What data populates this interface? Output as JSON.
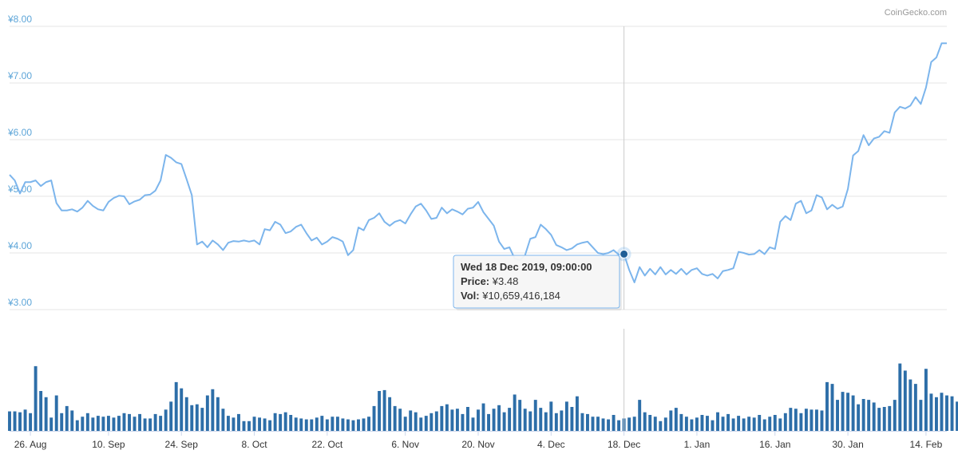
{
  "credit": "CoinGecko.com",
  "tooltip": {
    "date": "Wed 18 Dec 2019, 09:00:00",
    "price_label": "Price:",
    "price_value": "¥3.48",
    "vol_label": "Vol:",
    "vol_value": "¥10,659,416,184"
  },
  "colors": {
    "price_line": "#7cb5ec",
    "volume_bar": "#2d6ea8",
    "crosshair": "#cccccc",
    "grid": "#e6e6e6",
    "axis_label": "#5da5d8"
  },
  "chart_data": [
    {
      "type": "line",
      "title": "",
      "series": [
        {
          "name": "Price",
          "unit": "¥"
        }
      ],
      "y_tick_labels": [
        "¥3.00",
        "¥4.00",
        "¥5.00",
        "¥6.00",
        "¥7.00",
        "¥8.00"
      ],
      "ylim": [
        3,
        8
      ],
      "x_tick_labels": [
        "26. Aug",
        "10. Sep",
        "24. Sep",
        "8. Oct",
        "22. Oct",
        "6. Nov",
        "20. Nov",
        "4. Dec",
        "18. Dec",
        "1. Jan",
        "16. Jan",
        "30. Jan",
        "14. Feb"
      ],
      "x_start_date": "2019-08-22",
      "grid": true,
      "values": [
        5.38,
        5.28,
        5.05,
        5.25,
        5.25,
        5.28,
        5.18,
        5.25,
        5.28,
        4.88,
        4.75,
        4.75,
        4.77,
        4.73,
        4.8,
        4.92,
        4.83,
        4.77,
        4.75,
        4.9,
        4.97,
        5.01,
        5.0,
        4.86,
        4.91,
        4.94,
        5.02,
        5.03,
        5.1,
        5.28,
        5.73,
        5.68,
        5.6,
        5.57,
        5.3,
        5.02,
        4.15,
        4.2,
        4.1,
        4.22,
        4.15,
        4.05,
        4.18,
        4.21,
        4.2,
        4.22,
        4.2,
        4.22,
        4.15,
        4.42,
        4.4,
        4.55,
        4.5,
        4.35,
        4.38,
        4.46,
        4.5,
        4.35,
        4.22,
        4.27,
        4.15,
        4.2,
        4.28,
        4.25,
        4.2,
        3.96,
        4.05,
        4.45,
        4.4,
        4.58,
        4.62,
        4.7,
        4.55,
        4.48,
        4.55,
        4.58,
        4.52,
        4.68,
        4.82,
        4.87,
        4.75,
        4.6,
        4.62,
        4.8,
        4.7,
        4.77,
        4.73,
        4.68,
        4.78,
        4.8,
        4.9,
        4.72,
        4.6,
        4.48,
        4.2,
        4.07,
        4.1,
        3.9,
        3.87,
        3.96,
        4.25,
        4.28,
        4.5,
        4.42,
        4.32,
        4.14,
        4.1,
        4.05,
        4.08,
        4.15,
        4.18,
        4.2,
        4.1,
        4.0,
        3.98,
        4.0,
        4.05,
        3.97,
        3.98,
        3.7,
        3.48,
        3.75,
        3.6,
        3.72,
        3.62,
        3.75,
        3.62,
        3.7,
        3.63,
        3.72,
        3.62,
        3.7,
        3.73,
        3.63,
        3.6,
        3.63,
        3.55,
        3.68,
        3.7,
        3.73,
        4.02,
        4.0,
        3.97,
        3.98,
        4.05,
        3.98,
        4.1,
        4.07,
        4.55,
        4.65,
        4.58,
        4.87,
        4.92,
        4.7,
        4.75,
        5.02,
        4.98,
        4.77,
        4.85,
        4.78,
        4.82,
        5.13,
        5.72,
        5.8,
        6.08,
        5.9,
        6.02,
        6.05,
        6.15,
        6.12,
        6.48,
        6.58,
        6.55,
        6.6,
        6.75,
        6.63,
        6.92,
        7.37,
        7.45,
        7.7,
        7.7
      ]
    },
    {
      "type": "bar",
      "title": "",
      "series": [
        {
          "name": "Volume",
          "unit": "¥"
        }
      ],
      "values": [
        2.2,
        2.2,
        2.1,
        2.4,
        2.0,
        7.3,
        4.5,
        3.8,
        1.5,
        4.0,
        2.0,
        2.8,
        2.3,
        1.2,
        1.6,
        2.0,
        1.5,
        1.7,
        1.6,
        1.7,
        1.5,
        1.7,
        2.0,
        1.9,
        1.6,
        1.9,
        1.4,
        1.4,
        1.9,
        1.7,
        2.4,
        3.3,
        5.5,
        4.8,
        3.8,
        2.9,
        3.0,
        2.6,
        4.0,
        4.7,
        3.8,
        2.5,
        1.7,
        1.5,
        1.9,
        1.1,
        1.1,
        1.6,
        1.5,
        1.4,
        1.2,
        2.0,
        1.9,
        2.1,
        1.8,
        1.5,
        1.4,
        1.3,
        1.3,
        1.5,
        1.7,
        1.3,
        1.6,
        1.6,
        1.4,
        1.3,
        1.2,
        1.3,
        1.4,
        1.6,
        2.8,
        4.5,
        4.6,
        3.8,
        2.8,
        2.5,
        1.6,
        2.3,
        2.1,
        1.5,
        1.7,
        2.0,
        2.2,
        2.8,
        3.0,
        2.4,
        2.5,
        1.9,
        2.7,
        1.5,
        2.4,
        3.1,
        1.9,
        2.5,
        2.9,
        2.1,
        2.6,
        4.1,
        3.5,
        2.5,
        2.2,
        3.5,
        2.6,
        2.1,
        3.3,
        2.0,
        2.3,
        3.3,
        2.7,
        3.9,
        2.0,
        1.9,
        1.6,
        1.6,
        1.4,
        1.3,
        1.8,
        1.2,
        1.4,
        1.5,
        1.6,
        3.5,
        2.1,
        1.8,
        1.6,
        1.1,
        1.5,
        2.3,
        2.6,
        1.9,
        1.6,
        1.3,
        1.5,
        1.8,
        1.7,
        1.2,
        2.1,
        1.6,
        1.9,
        1.4,
        1.7,
        1.4,
        1.6,
        1.5,
        1.8,
        1.3,
        1.6,
        1.8,
        1.4,
        2.0,
        2.6,
        2.5,
        2.0,
        2.5,
        2.4,
        2.4,
        2.3,
        5.5,
        5.3,
        3.5,
        4.4,
        4.3,
        4.0,
        3.0,
        3.6,
        3.5,
        3.2,
        2.6,
        2.7,
        2.8,
        3.5,
        7.6,
        6.8,
        5.8,
        5.3,
        3.5,
        7.0,
        4.2,
        3.8,
        4.3,
        4.0,
        3.9,
        3.3,
        3.4,
        3.4,
        6.8,
        7.8,
        9.0,
        6.8,
        6.8
      ]
    }
  ]
}
